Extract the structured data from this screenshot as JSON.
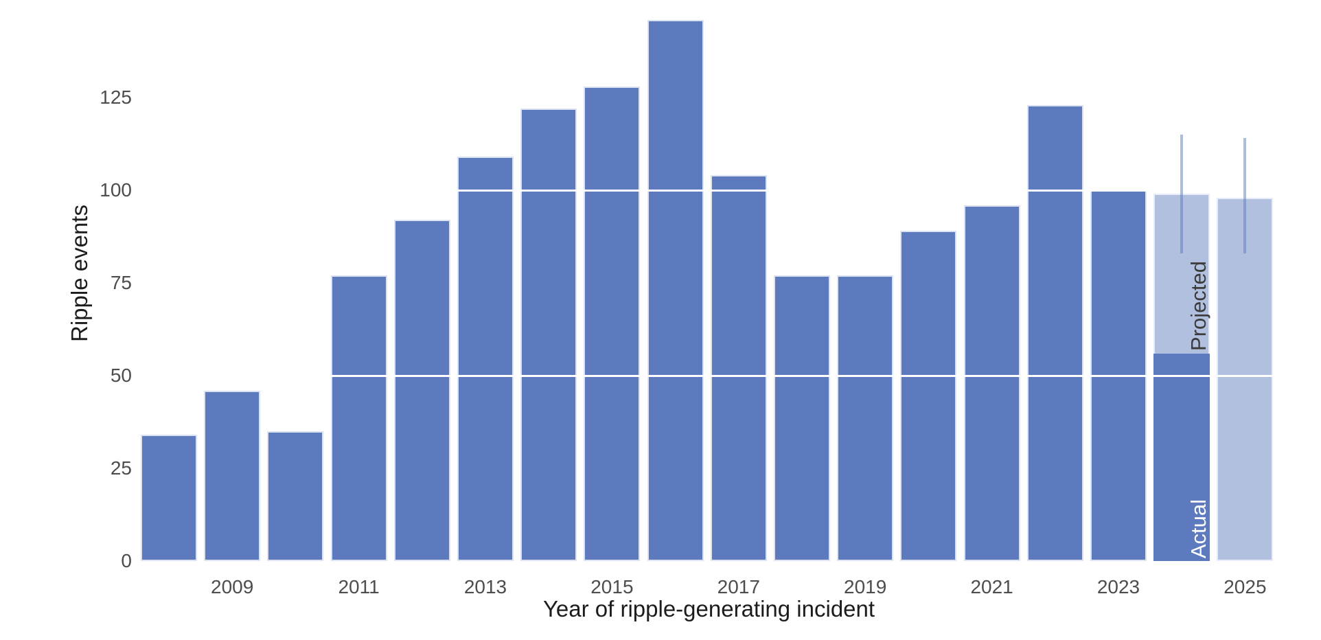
{
  "figure": {
    "background_color": "#ffffff",
    "y_axis": {
      "title": "Ripple events",
      "tick_labels": [
        "0",
        "25",
        "50",
        "75",
        "100",
        "125"
      ]
    },
    "x_axis": {
      "title": "Year of ripple-generating incident",
      "tick_labels": [
        "2009",
        "2011",
        "2013",
        "2015",
        "2017",
        "2019",
        "2021",
        "2023",
        "2025"
      ]
    },
    "colors": {
      "actual_bar": "#5d7abe",
      "projected_bar": "#b2c0e0",
      "error_bar": "#5d7abe",
      "grid_line": "#ffffff",
      "tick_label": "#4d4d4d",
      "axis_title": "#1c1c1c",
      "annotation_projected_text": "#3b3b3b",
      "annotation_actual_text": "#ffffff"
    }
  },
  "chart_data": {
    "type": "bar",
    "title": "",
    "xlabel": "Year of ripple-generating incident",
    "ylabel": "Ripple events",
    "ylim": [
      0,
      147
    ],
    "yticks": [
      0,
      25,
      50,
      75,
      100,
      125
    ],
    "xticks": [
      2009,
      2011,
      2013,
      2015,
      2017,
      2019,
      2021,
      2023,
      2025
    ],
    "grid": "white horizontal lines at 50 and 100 drawn over bars; no axis lines or tick marks",
    "legend_position": "none",
    "categories": [
      2008,
      2009,
      2010,
      2011,
      2012,
      2013,
      2014,
      2015,
      2016,
      2017,
      2018,
      2019,
      2020,
      2021,
      2022,
      2023,
      2024,
      2025
    ],
    "series": [
      {
        "name": "Actual",
        "values": [
          34,
          46,
          35,
          77,
          92,
          109,
          122,
          128,
          146,
          104,
          77,
          77,
          89,
          96,
          123,
          100,
          56,
          0
        ]
      },
      {
        "name": "Projected",
        "values": [
          0,
          0,
          0,
          0,
          0,
          0,
          0,
          0,
          0,
          0,
          0,
          0,
          0,
          0,
          0,
          0,
          43,
          98
        ]
      }
    ],
    "bar_totals_note": "2024 total = 99 (56 actual + 43 projected); 2025 total = 98 (all projected)",
    "error_bars": [
      {
        "year": 2024,
        "low": 83,
        "high": 115
      },
      {
        "year": 2025,
        "low": 83,
        "high": 114
      }
    ],
    "annotations": [
      {
        "text": "Projected",
        "year": 2024,
        "placement": "rotated 90deg, inside upper light segment of 2024 bar"
      },
      {
        "text": "Actual",
        "year": 2024,
        "placement": "rotated 90deg, white, inside lower dark segment of 2024 bar near baseline"
      }
    ]
  }
}
